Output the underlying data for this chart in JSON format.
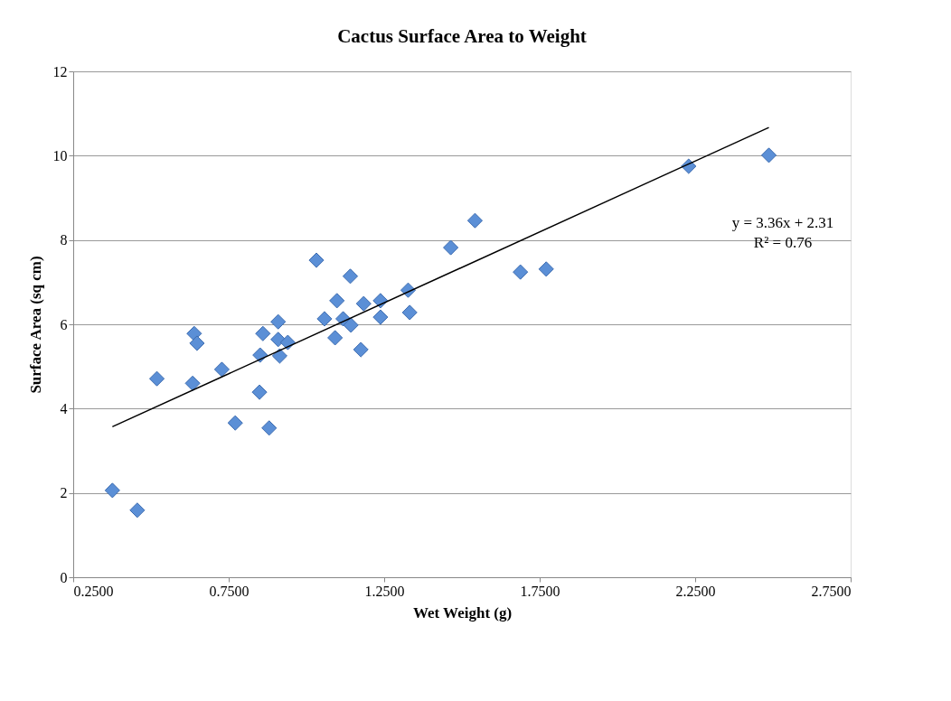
{
  "chart_data": {
    "type": "scatter",
    "title": "Cactus Surface Area to Weight",
    "xlabel": "Wet Weight (g)",
    "ylabel": "Surface Area (sq cm)",
    "xlim": [
      0.25,
      2.75
    ],
    "xticks": [
      {
        "value": 0.25,
        "label": "0.2500"
      },
      {
        "value": 0.75,
        "label": "0.7500"
      },
      {
        "value": 1.25,
        "label": "1.2500"
      },
      {
        "value": 1.75,
        "label": "1.7500"
      },
      {
        "value": 2.25,
        "label": "2.2500"
      },
      {
        "value": 2.75,
        "label": "2.7500"
      }
    ],
    "ylim": [
      0,
      12
    ],
    "yticks": [
      0,
      2,
      4,
      6,
      8,
      10,
      12
    ],
    "grid": "y",
    "legend": false,
    "series": [
      {
        "type": "scatter",
        "marker": "diamond",
        "color": "#5b8fd6",
        "x": [
          0.376,
          0.456,
          0.519,
          0.634,
          0.639,
          0.648,
          0.728,
          0.771,
          0.849,
          0.88,
          0.851,
          0.86,
          0.909,
          0.909,
          0.914,
          0.94,
          1.032,
          1.058,
          1.092,
          1.098,
          1.141,
          1.118,
          1.143,
          1.175,
          1.184,
          1.238,
          1.238,
          1.327,
          1.332,
          1.464,
          1.542,
          1.688,
          1.771,
          2.229,
          2.487
        ],
        "values": [
          2.06,
          1.59,
          4.71,
          4.6,
          5.78,
          5.55,
          4.93,
          3.66,
          4.39,
          3.54,
          5.27,
          5.78,
          6.06,
          5.64,
          5.25,
          5.57,
          7.52,
          6.13,
          5.68,
          6.56,
          7.14,
          6.13,
          5.98,
          5.4,
          6.49,
          6.56,
          6.17,
          6.81,
          6.28,
          7.82,
          8.46,
          7.24,
          7.31,
          9.75,
          10.01
        ]
      },
      {
        "type": "line",
        "line_style": "solid",
        "color": "#000000",
        "x": [
          0.376,
          2.487
        ],
        "values": [
          3.57,
          10.67
        ]
      }
    ],
    "annotations": [
      "y = 3.36x + 2.31",
      "R² = 0.76"
    ]
  }
}
